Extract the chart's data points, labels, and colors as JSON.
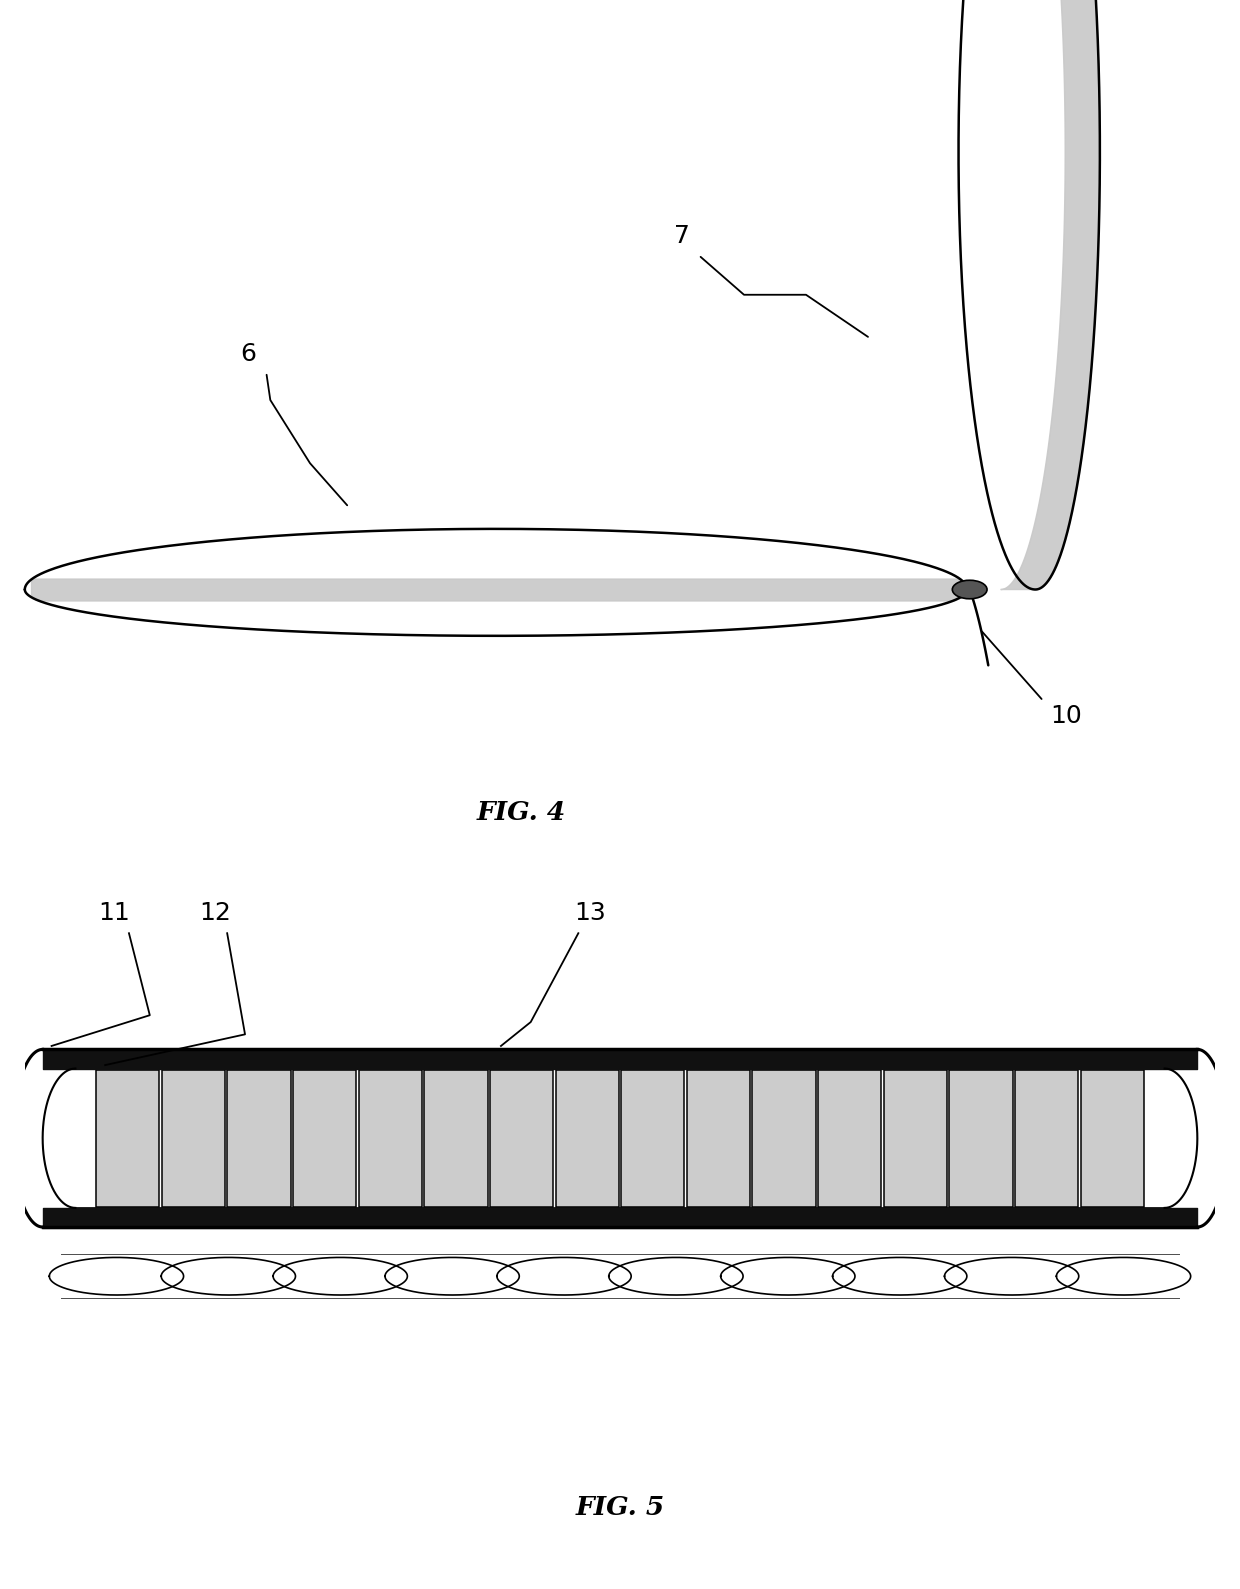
{
  "bg_color": "#ffffff",
  "line_color": "#000000",
  "gray_fill": "#c8c8c8",
  "cell_gray": "#cccccc",
  "dark_bar": "#111111",
  "fig4_label": "FIG. 4",
  "fig5_label": "FIG. 5",
  "label_6": "6",
  "label_7": "7",
  "label_10": "10",
  "label_11": "11",
  "label_12": "12",
  "label_13": "13",
  "font_size_label": 18,
  "font_size_fig": 18,
  "lw_main": 1.8,
  "lw_thick": 2.5
}
